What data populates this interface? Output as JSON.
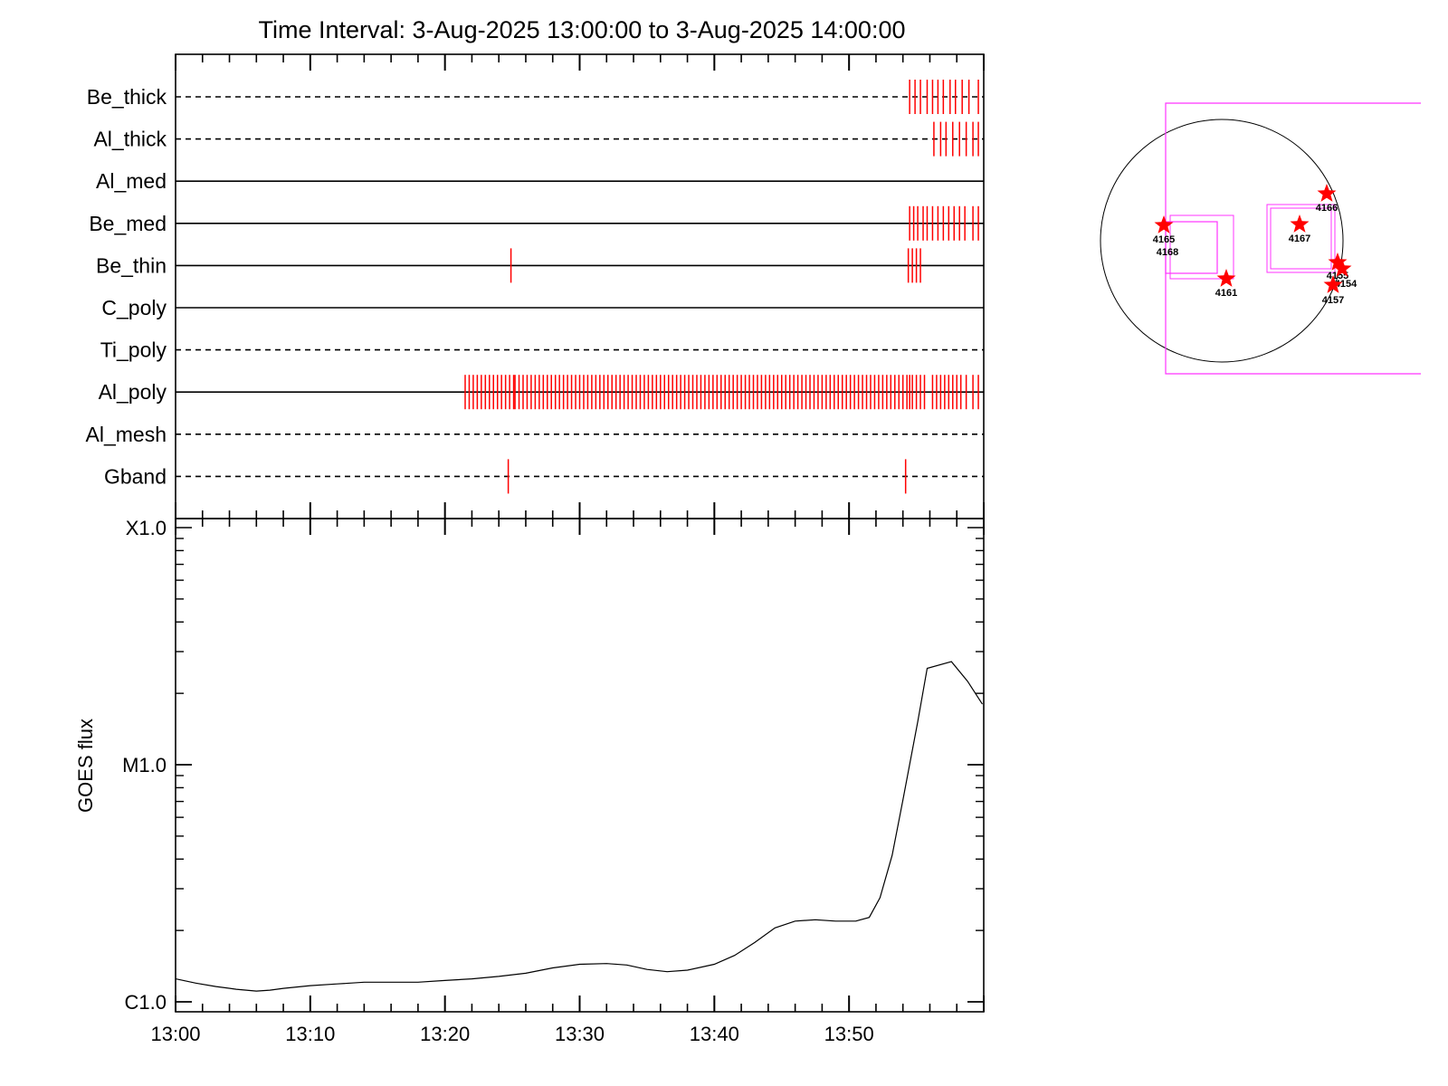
{
  "title": "Time Interval:  3-Aug-2025 13:00:00 to  3-Aug-2025 14:00:00",
  "chart_data": [
    {
      "type": "timeline",
      "xlim_minutes_after_13_00": [
        0,
        60
      ],
      "rows": [
        {
          "label": "Be_thick",
          "line": "dashed",
          "events": [
            54.5,
            54.9,
            55.3,
            55.8,
            56.2,
            56.6,
            57.0,
            57.5,
            57.9,
            58.4,
            58.9,
            59.6
          ]
        },
        {
          "label": "Al_thick",
          "line": "dashed",
          "events": [
            56.3,
            56.8,
            57.2,
            57.7,
            58.2,
            58.7,
            59.2,
            59.6
          ]
        },
        {
          "label": "Al_med",
          "line": "solid",
          "events": []
        },
        {
          "label": "Be_med",
          "line": "solid",
          "events": [
            54.5,
            54.8,
            55.1,
            55.5,
            55.8,
            56.2,
            56.6,
            57.0,
            57.4,
            57.8,
            58.2,
            58.6,
            59.2,
            59.6
          ]
        },
        {
          "label": "Be_thin",
          "line": "solid",
          "events": [
            24.9,
            54.4,
            54.7,
            55.0,
            55.3
          ]
        },
        {
          "label": "C_poly",
          "line": "solid",
          "events": []
        },
        {
          "label": "Ti_poly",
          "line": "dashed",
          "events": []
        },
        {
          "label": "Al_poly",
          "line": "solid",
          "events": [
            21.5,
            21.8,
            22.1,
            22.4,
            22.7,
            23.0,
            23.3,
            23.6,
            23.9,
            24.2,
            24.5,
            24.8,
            25.1,
            25.2,
            25.5,
            25.8,
            26.1,
            26.4,
            26.7,
            27.0,
            27.3,
            27.6,
            27.9,
            28.2,
            28.5,
            28.8,
            29.1,
            29.4,
            29.7,
            30.0,
            30.3,
            30.6,
            30.9,
            31.2,
            31.5,
            31.8,
            32.1,
            32.4,
            32.7,
            33.0,
            33.3,
            33.6,
            33.9,
            34.2,
            34.5,
            34.8,
            35.1,
            35.4,
            35.7,
            36.0,
            36.3,
            36.6,
            36.9,
            37.2,
            37.5,
            37.8,
            38.1,
            38.4,
            38.7,
            39.0,
            39.3,
            39.6,
            39.9,
            40.2,
            40.5,
            40.8,
            41.1,
            41.4,
            41.7,
            42.0,
            42.3,
            42.6,
            42.9,
            43.2,
            43.5,
            43.8,
            44.1,
            44.4,
            44.7,
            45.0,
            45.3,
            45.6,
            45.9,
            46.2,
            46.5,
            46.8,
            47.1,
            47.4,
            47.7,
            48.0,
            48.3,
            48.6,
            48.9,
            49.2,
            49.5,
            49.8,
            50.1,
            50.4,
            50.7,
            51.0,
            51.3,
            51.6,
            51.9,
            52.2,
            52.5,
            52.8,
            53.1,
            53.4,
            53.7,
            54.0,
            54.3,
            54.5,
            54.7,
            55.0,
            55.3,
            55.6,
            56.2,
            56.5,
            56.8,
            57.1,
            57.4,
            57.7,
            58.0,
            58.3,
            58.7,
            59.2,
            59.6
          ]
        },
        {
          "label": "Al_mesh",
          "line": "dashed",
          "events": []
        },
        {
          "label": "Gband",
          "line": "dashed",
          "events": [
            24.7,
            54.2
          ]
        }
      ]
    },
    {
      "type": "line",
      "ylabel": "GOES flux",
      "yscale": "log",
      "ylim": [
        1e-06,
        0.0001
      ],
      "ytick_labels": [
        "C1.0",
        "M1.0",
        "X1.0"
      ],
      "ytick_values": [
        1e-06,
        1e-05,
        0.0001
      ],
      "xtick_labels": [
        "13:00",
        "13:10",
        "13:20",
        "13:30",
        "13:40",
        "13:50"
      ],
      "xtick_minutes": [
        0,
        10,
        20,
        30,
        40,
        50
      ],
      "series": [
        {
          "x": [
            0,
            1.5,
            3,
            4.5,
            6,
            7,
            8,
            10,
            12,
            14,
            16,
            18,
            20,
            22,
            24,
            26,
            28,
            30,
            32,
            33.5,
            35,
            36.5,
            38,
            40,
            41.5,
            43,
            44.5,
            46,
            47.5,
            49,
            50.5,
            51.5,
            52.3,
            53.2,
            54,
            55.1,
            55.8,
            57.6,
            58.8,
            59.9
          ],
          "y": [
            1.25e-06,
            1.2e-06,
            1.16e-06,
            1.13e-06,
            1.11e-06,
            1.12e-06,
            1.14e-06,
            1.17e-06,
            1.19e-06,
            1.21e-06,
            1.21e-06,
            1.21e-06,
            1.23e-06,
            1.25e-06,
            1.28e-06,
            1.32e-06,
            1.39e-06,
            1.44e-06,
            1.45e-06,
            1.43e-06,
            1.37e-06,
            1.34e-06,
            1.36e-06,
            1.44e-06,
            1.57e-06,
            1.78e-06,
            2.05e-06,
            2.19e-06,
            2.22e-06,
            2.19e-06,
            2.19e-06,
            2.27e-06,
            2.75e-06,
            4.15e-06,
            7.1e-06,
            1.52e-05,
            2.55e-05,
            2.72e-05,
            2.25e-05,
            1.8e-05
          ]
        }
      ]
    }
  ],
  "map": {
    "active_regions": [
      {
        "label": "4165",
        "star": true
      },
      {
        "label": "4168",
        "star": false
      },
      {
        "label": "4161",
        "star": true
      },
      {
        "label": "4167",
        "star": true
      },
      {
        "label": "4166",
        "star": true
      },
      {
        "label": "4155",
        "star": true
      },
      {
        "label": "4154",
        "star": true
      },
      {
        "label": "4157",
        "star": true
      }
    ]
  },
  "colors": {
    "event": "#ff0000",
    "fov": "#ff33ff",
    "star": "#ff0000",
    "axes": "#000000"
  }
}
